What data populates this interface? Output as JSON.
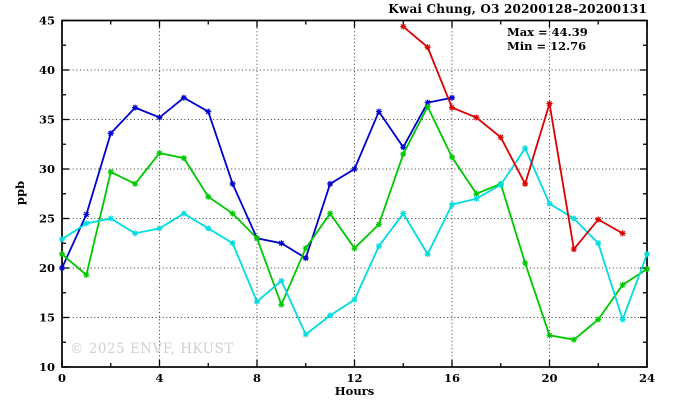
{
  "watermark": "© 2025 ENVF, HKUST",
  "chart_data": {
    "type": "line",
    "title": "Kwai Chung, O3 20200128–20200131",
    "xlabel": "Hours",
    "ylabel": "ppb",
    "xlim": [
      0,
      24
    ],
    "ylim": [
      10,
      45
    ],
    "grid": true,
    "legend": "none",
    "annotations": [
      "Max = 44.39",
      "Min = 12.76"
    ],
    "x_major_ticks": [
      0,
      4,
      8,
      12,
      16,
      20,
      24
    ],
    "x_minor_ticks": [
      2,
      6,
      10,
      14,
      18,
      22
    ],
    "y_major_ticks": [
      10,
      15,
      20,
      25,
      30,
      35,
      40,
      45
    ],
    "y_minor_ticks": [
      12.5,
      17.5,
      22.5,
      27.5,
      32.5,
      37.5,
      42.5
    ],
    "max_value": 44.39,
    "min_value": 12.76,
    "series": [
      {
        "name": "blue",
        "color": "#0000cd",
        "x": [
          0,
          1,
          2,
          3,
          4,
          5,
          6,
          7,
          8,
          9,
          10,
          11,
          12,
          13,
          14,
          15,
          16
        ],
        "y": [
          20.0,
          25.4,
          33.6,
          36.2,
          35.2,
          37.2,
          35.8,
          28.5,
          23.0,
          22.5,
          21.0,
          28.5,
          30.0,
          35.8,
          32.2,
          36.7,
          37.2
        ]
      },
      {
        "name": "green",
        "color": "#00c800",
        "x": [
          0,
          1,
          2,
          3,
          4,
          5,
          6,
          7,
          8,
          9,
          10,
          11,
          12,
          13,
          14,
          15,
          16,
          17,
          18,
          19,
          20,
          21,
          22,
          23,
          24
        ],
        "y": [
          21.4,
          19.3,
          29.7,
          28.5,
          31.6,
          31.1,
          27.2,
          25.5,
          23.0,
          16.3,
          22.0,
          25.5,
          22.0,
          24.4,
          31.5,
          36.3,
          31.2,
          27.5,
          28.5,
          20.5,
          13.2,
          12.76,
          14.8,
          18.3,
          19.9
        ]
      },
      {
        "name": "cyan",
        "color": "#00dde0",
        "x": [
          0,
          1,
          2,
          3,
          4,
          5,
          6,
          7,
          8,
          9,
          10,
          11,
          12,
          13,
          14,
          15,
          16,
          17,
          18,
          19,
          20,
          21,
          22,
          23,
          24
        ],
        "y": [
          22.9,
          24.5,
          25.0,
          23.5,
          24.0,
          25.5,
          24.0,
          22.5,
          16.6,
          18.7,
          13.3,
          15.2,
          16.8,
          22.2,
          25.5,
          21.4,
          26.4,
          27.0,
          28.4,
          32.1,
          26.5,
          25.0,
          22.5,
          14.8,
          21.4
        ]
      },
      {
        "name": "red",
        "color": "#dd0000",
        "x": [
          14,
          15,
          16,
          17,
          18,
          19,
          20,
          21,
          22,
          23
        ],
        "y": [
          44.39,
          42.3,
          36.2,
          35.2,
          33.2,
          28.5,
          36.6,
          21.9,
          24.9,
          23.5
        ]
      }
    ]
  }
}
